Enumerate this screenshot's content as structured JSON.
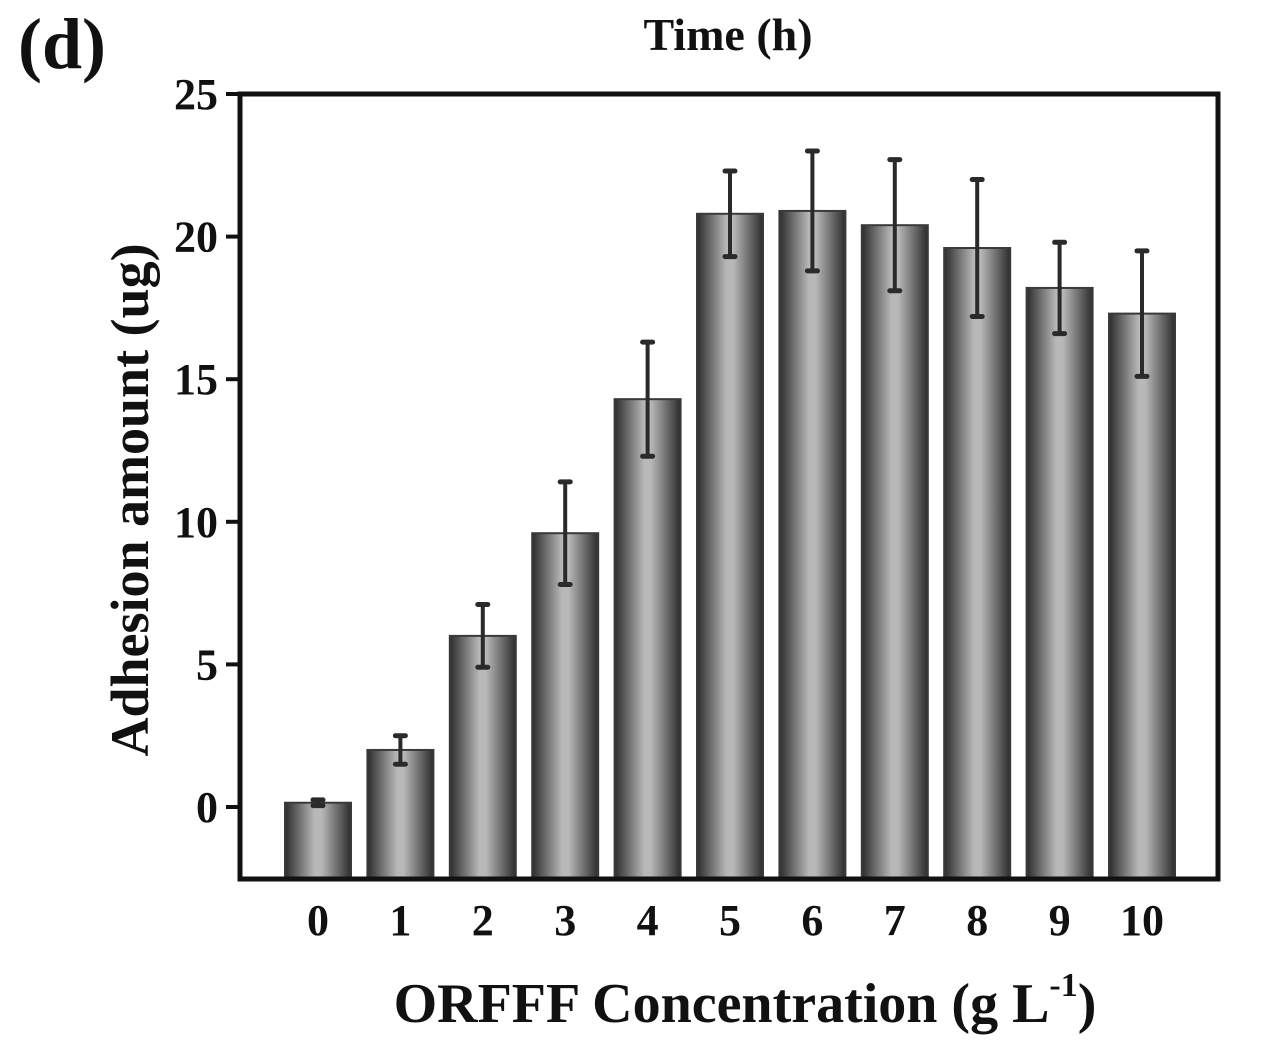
{
  "chart_data": {
    "type": "bar",
    "panel_label": "(d)",
    "top_label": "Time (h)",
    "xlabel_main": "ORFFF Concentration (g L",
    "xlabel_sup": "-1",
    "xlabel_close": ")",
    "ylabel": "Adhesion amount (ug)",
    "categories": [
      "0",
      "1",
      "2",
      "3",
      "4",
      "5",
      "6",
      "7",
      "8",
      "9",
      "10"
    ],
    "values": [
      0.15,
      2.0,
      6.0,
      9.6,
      14.3,
      20.8,
      20.9,
      20.4,
      19.6,
      18.2,
      17.3
    ],
    "errors": [
      0.1,
      0.5,
      1.1,
      1.8,
      2.0,
      1.5,
      2.1,
      2.3,
      2.4,
      1.6,
      2.2
    ],
    "ylim": [
      -2.5,
      25
    ],
    "yticks": [
      0,
      5,
      10,
      15,
      20,
      25
    ],
    "grid": false,
    "colors": {
      "bar_edge": "#3a3a3a",
      "bar_center": "#b8b8b8",
      "bar_dark": "#2c2c2c",
      "error": "#2a2a2a",
      "axis": "#111111"
    }
  }
}
